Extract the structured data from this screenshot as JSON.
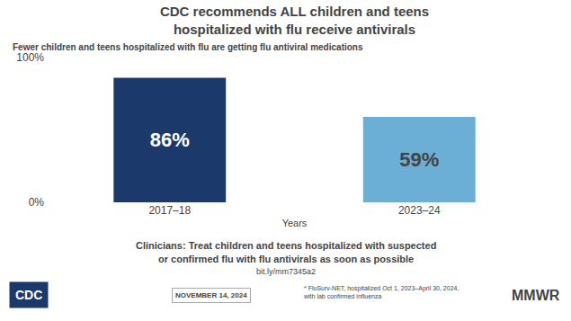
{
  "chart_data": {
    "type": "bar",
    "title": "CDC recommends ALL children and teens\nhospitalized with flu receive antivirals",
    "subtitle": "Fewer children and teens hospitalized with flu are getting flu antiviral medications",
    "categories": [
      "2017–18",
      "2023–24"
    ],
    "values": [
      86,
      59
    ],
    "value_labels": [
      "86%",
      "59%"
    ],
    "data_labels": true,
    "colors": [
      "#1B3A6B",
      "#6BAED6"
    ],
    "xlabel": "Years",
    "ylim": [
      0,
      100
    ],
    "yticks": [
      {
        "value": 0,
        "label": "0%"
      },
      {
        "value": 100,
        "label": "100%"
      }
    ],
    "grid": true,
    "annotations": [
      "Clinicians: Treat children and teens hospitalized with suspected",
      "or confirmed flu with flu antivirals as soon as possible",
      "bit.ly/mm7345a2",
      "NOVEMBER 14, 2024",
      "* FluSurv-NET, hospitalized Oct 1, 2023–April 30, 2024,\nwith lab confirmed influenza",
      "MMWR",
      "CDC"
    ]
  }
}
